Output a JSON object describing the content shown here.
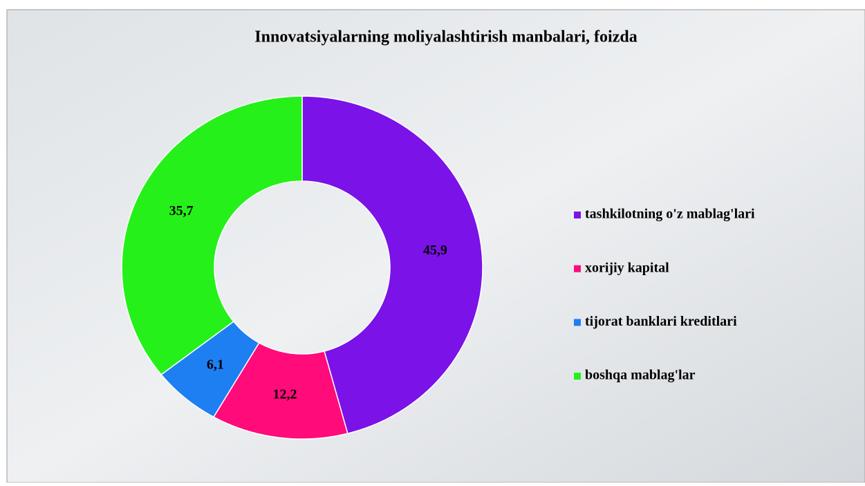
{
  "chart_data": {
    "type": "donut",
    "title": "Innovatsiyalarning moliyalashtirish  manbalari, foizda",
    "categories": [
      "tashkilotning o'z mablag'lari",
      "xorijiy kapital",
      "tijorat banklari kreditlari",
      "boshqa mablag'lar"
    ],
    "values": [
      45.9,
      12.2,
      6.1,
      35.7
    ],
    "value_labels": [
      "45,9",
      "12,2",
      "6,1",
      "35,7"
    ],
    "colors": [
      "#7b12e8",
      "#ff0b7a",
      "#1e7ff2",
      "#26f01a"
    ],
    "legend": "right"
  }
}
